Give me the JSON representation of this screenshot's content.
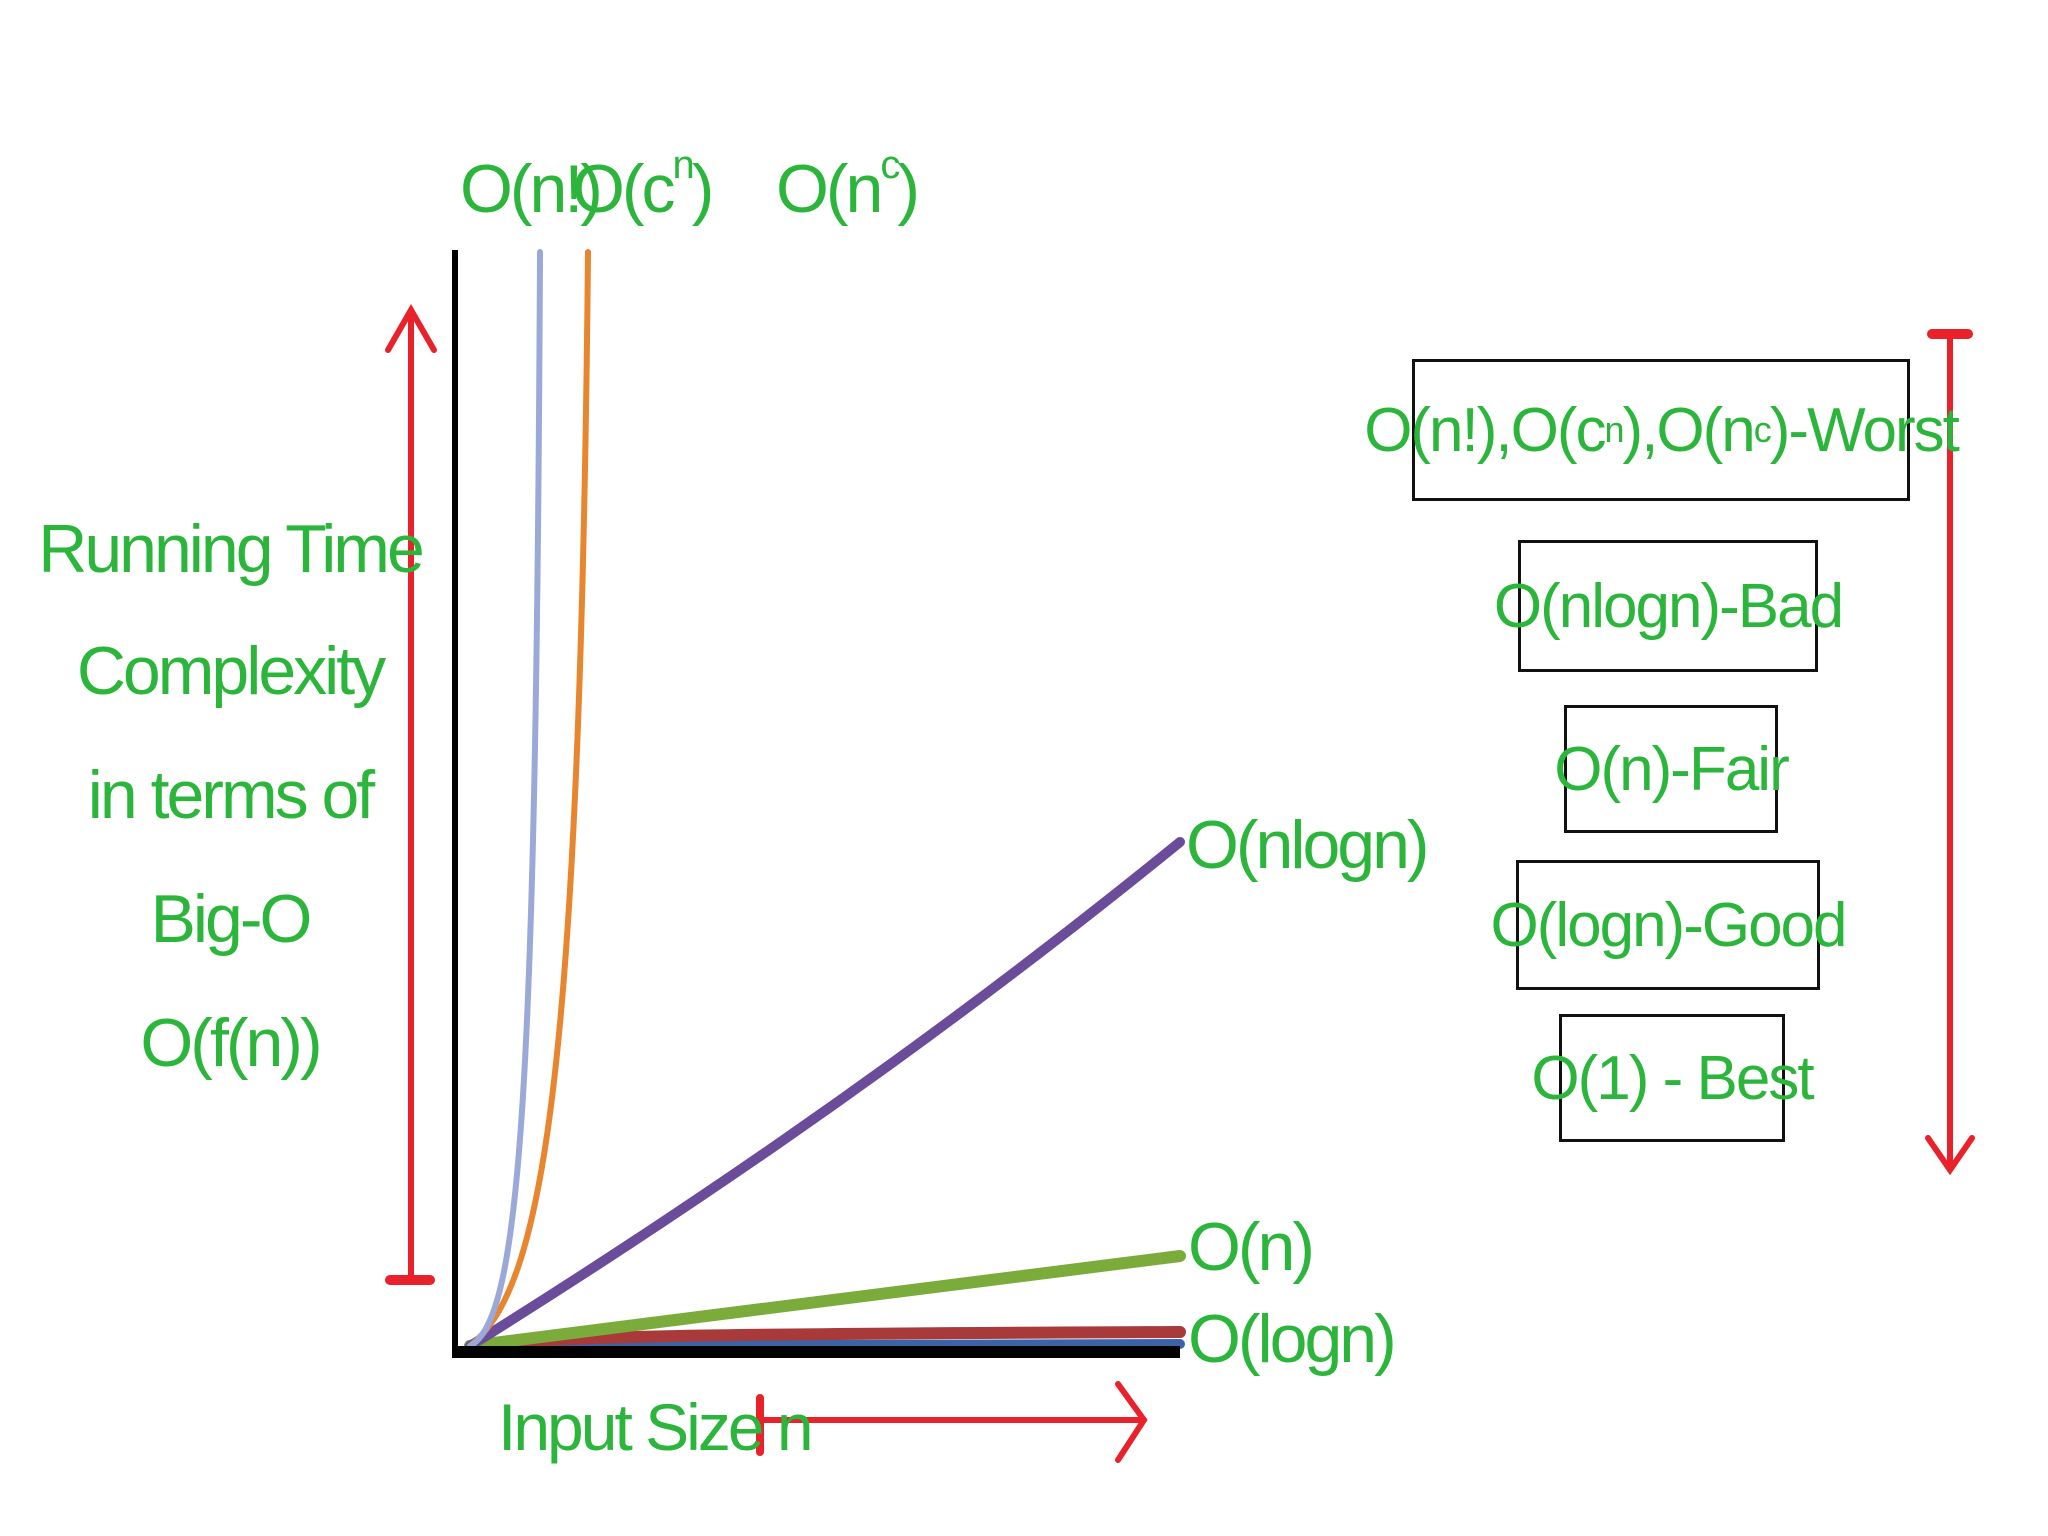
{
  "title_labels": {
    "fact": "O(n!)",
    "exp_base": "O(c",
    "exp_sup": "n",
    "exp_close": ")",
    "poly_base": "O(n",
    "poly_sup": "c",
    "poly_close": ")"
  },
  "curve_labels": {
    "nlogn": "O(nlogn)",
    "n": "O(n)",
    "logn": "O(logn)"
  },
  "ylabel_lines": [
    "Running Time",
    "Complexity",
    "in terms of",
    "Big-O",
    "O(f(n))"
  ],
  "xlabel": "Input Size n",
  "ranking": [
    {
      "parts": [
        "O(n!),O(c",
        "n",
        "),O(n",
        "c",
        ")-Worst"
      ]
    },
    {
      "text": "O(nlogn)-Bad"
    },
    {
      "text": "O(n)-Fair"
    },
    {
      "text": "O(logn)-Good"
    },
    {
      "text": "O(1) - Best"
    }
  ],
  "colors": {
    "label_green": "#2bb53b",
    "arrow_red": "#e8212b",
    "axis_black": "#000000",
    "factorial": "#9aa9d8",
    "exponential": "#e8852f",
    "polynomial": "#2e97ad",
    "nlogn": "#6a4c9a",
    "linear": "#7bab3a",
    "log": "#a83a3a",
    "constant": "#3a63a8"
  }
}
